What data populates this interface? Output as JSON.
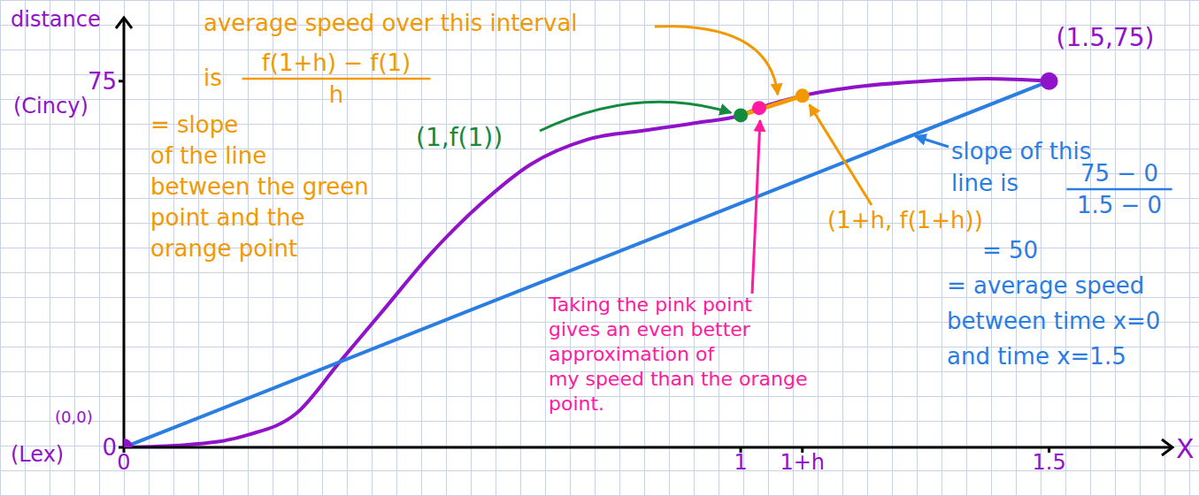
{
  "chart_data": {
    "type": "line",
    "y_label": "distance",
    "x_label": "X",
    "xlim": [
      0,
      1.7
    ],
    "ylim": [
      0,
      88
    ],
    "xticks": [
      0,
      1,
      {
        "value": 1.1,
        "label": "1+h"
      },
      1.5
    ],
    "yticks": [
      0,
      75
    ],
    "grid": true,
    "series": [
      {
        "color": "#9013c9",
        "x": [
          0,
          0.1,
          0.2,
          0.28,
          0.35,
          0.42,
          0.5,
          0.58,
          0.66,
          0.75,
          0.85,
          0.93,
          1.0,
          1.03,
          1.1,
          1.2,
          1.3,
          1.4,
          1.5
        ],
        "values": [
          0,
          0.5,
          2.5,
          7,
          17.5,
          28,
          40,
          50,
          58,
          63,
          65,
          66.5,
          68,
          69.5,
          72,
          74,
          75,
          75.5,
          75
        ]
      },
      {
        "color": "#2a7de1",
        "x": [
          0,
          1.5
        ],
        "values": [
          0,
          75
        ]
      },
      {
        "color": "#f29900",
        "x": [
          1,
          1.1
        ],
        "values": [
          68,
          72
        ]
      }
    ],
    "points": [
      {
        "x": 0,
        "y": 0,
        "color": "#9013c9"
      },
      {
        "x": 1.5,
        "y": 75,
        "color": "#9013c9"
      },
      {
        "x": 1,
        "y": 68,
        "color": "#138a3e"
      },
      {
        "x": 1.03,
        "y": 69.5,
        "color": "#ff1aa0"
      },
      {
        "x": 1.1,
        "y": 72,
        "color": "#f29900"
      }
    ],
    "annotations": {
      "y_top_name": {
        "text": "(Cincy)",
        "color": "#9013c9"
      },
      "y_bottom_name": {
        "text": "(Lex)",
        "color": "#9013c9"
      },
      "origin": {
        "text": "(0,0)",
        "color": "#9013c9"
      },
      "end": {
        "text": "(1.5,75)",
        "color": "#9013c9"
      },
      "green_point": {
        "text": "(1,f(1))",
        "color": "#138a3e"
      },
      "orange_point": {
        "text": "(1+h, f(1+h))",
        "color": "#f29900"
      },
      "orange_note": {
        "color": "#f29900",
        "lead": "average speed over this interval",
        "is": "is",
        "numerator": "f(1+h) − f(1)",
        "denominator": "h",
        "lines": [
          "= slope",
          "of the line",
          "between the green",
          "point and the",
          "orange point"
        ]
      },
      "blue_note": {
        "color": "#2a7de1",
        "lines_before": [
          "slope of this",
          "line is"
        ],
        "numerator": "75 − 0",
        "denominator": "1.5 − 0",
        "lines_after": [
          "= 50",
          "= average speed",
          "between time x=0",
          "and time x=1.5"
        ]
      },
      "pink_note": {
        "color": "#ff1aa0",
        "lines": [
          "Taking the pink point",
          "gives an even better",
          "approximation of",
          "my speed than the orange",
          "point."
        ]
      }
    }
  }
}
